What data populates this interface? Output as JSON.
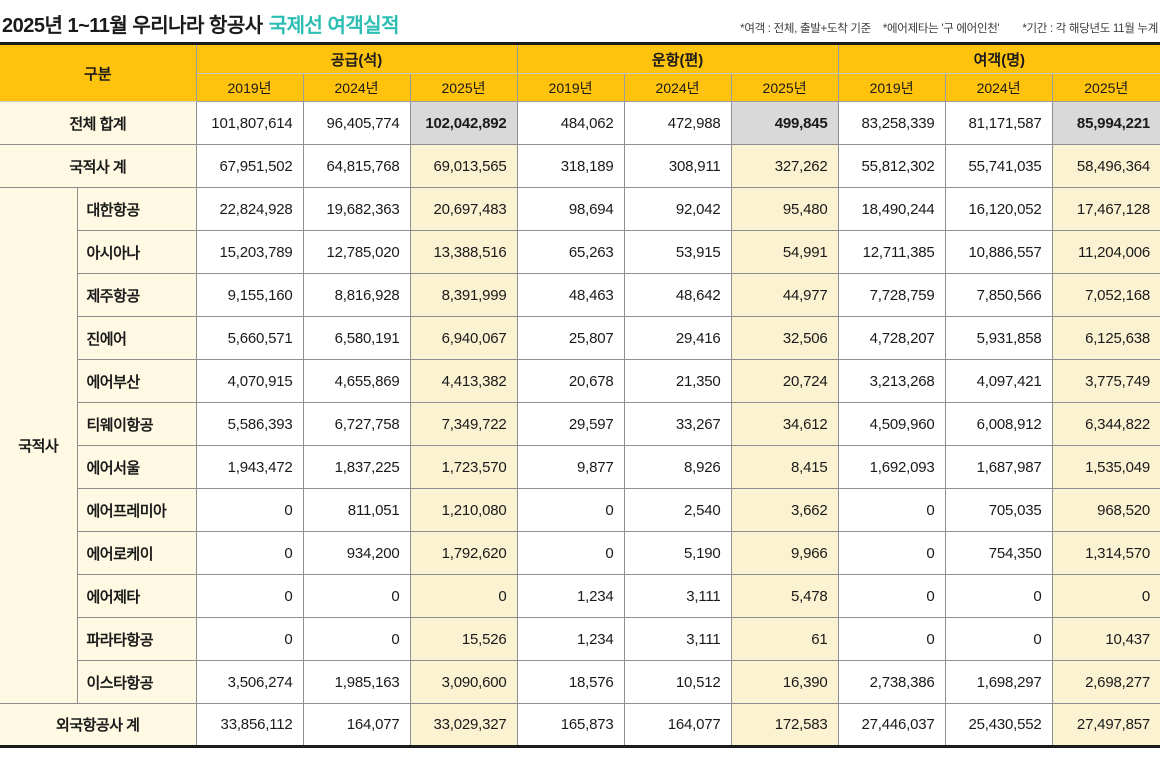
{
  "title": {
    "prefix": "2025년 1~11월 우리나라 항공사",
    "highlight": "국제선 여객실적"
  },
  "notes": [
    "*여객 : 전체, 출발+도착 기준",
    "*에어제타는 '구 에어인천'",
    "*기간 : 각 해당년도 11월 누계"
  ],
  "colors": {
    "header_bg": "#ffc20d",
    "label_bg": "#fff9e3",
    "col2025_bg": "#fbf2d1",
    "total2025_bg": "#d9d9d9",
    "title_accent": "#2cbeb3",
    "grid": "#8e8e8e"
  },
  "table": {
    "corner_label": "구분",
    "groups": [
      {
        "label": "공급(석)"
      },
      {
        "label": "운항(편)"
      },
      {
        "label": "여객(명)"
      }
    ],
    "years": [
      "2019년",
      "2024년",
      "2025년"
    ],
    "group_row_label": "국적사",
    "rows": [
      {
        "label": "전체 합계",
        "type": "total",
        "values": [
          "101,807,614",
          "96,405,774",
          "102,042,892",
          "484,062",
          "472,988",
          "499,845",
          "83,258,339",
          "81,171,587",
          "85,994,221"
        ]
      },
      {
        "label": "국적사 계",
        "type": "subtotal",
        "values": [
          "67,951,502",
          "64,815,768",
          "69,013,565",
          "318,189",
          "308,911",
          "327,262",
          "55,812,302",
          "55,741,035",
          "58,496,364"
        ]
      },
      {
        "label": "대한항공",
        "type": "airline",
        "values": [
          "22,824,928",
          "19,682,363",
          "20,697,483",
          "98,694",
          "92,042",
          "95,480",
          "18,490,244",
          "16,120,052",
          "17,467,128"
        ]
      },
      {
        "label": "아시아나",
        "type": "airline",
        "values": [
          "15,203,789",
          "12,785,020",
          "13,388,516",
          "65,263",
          "53,915",
          "54,991",
          "12,711,385",
          "10,886,557",
          "11,204,006"
        ]
      },
      {
        "label": "제주항공",
        "type": "airline",
        "values": [
          "9,155,160",
          "8,816,928",
          "8,391,999",
          "48,463",
          "48,642",
          "44,977",
          "7,728,759",
          "7,850,566",
          "7,052,168"
        ]
      },
      {
        "label": "진에어",
        "type": "airline",
        "values": [
          "5,660,571",
          "6,580,191",
          "6,940,067",
          "25,807",
          "29,416",
          "32,506",
          "4,728,207",
          "5,931,858",
          "6,125,638"
        ]
      },
      {
        "label": "에어부산",
        "type": "airline",
        "values": [
          "4,070,915",
          "4,655,869",
          "4,413,382",
          "20,678",
          "21,350",
          "20,724",
          "3,213,268",
          "4,097,421",
          "3,775,749"
        ]
      },
      {
        "label": "티웨이항공",
        "type": "airline",
        "values": [
          "5,586,393",
          "6,727,758",
          "7,349,722",
          "29,597",
          "33,267",
          "34,612",
          "4,509,960",
          "6,008,912",
          "6,344,822"
        ]
      },
      {
        "label": "에어서울",
        "type": "airline",
        "values": [
          "1,943,472",
          "1,837,225",
          "1,723,570",
          "9,877",
          "8,926",
          "8,415",
          "1,692,093",
          "1,687,987",
          "1,535,049"
        ]
      },
      {
        "label": "에어프레미아",
        "type": "airline",
        "values": [
          "0",
          "811,051",
          "1,210,080",
          "0",
          "2,540",
          "3,662",
          "0",
          "705,035",
          "968,520"
        ]
      },
      {
        "label": "에어로케이",
        "type": "airline",
        "values": [
          "0",
          "934,200",
          "1,792,620",
          "0",
          "5,190",
          "9,966",
          "0",
          "754,350",
          "1,314,570"
        ]
      },
      {
        "label": "에어제타",
        "type": "airline",
        "values": [
          "0",
          "0",
          "0",
          "1,234",
          "3,111",
          "5,478",
          "0",
          "0",
          "0"
        ]
      },
      {
        "label": "파라타항공",
        "type": "airline",
        "values": [
          "0",
          "0",
          "15,526",
          "1,234",
          "3,111",
          "61",
          "0",
          "0",
          "10,437"
        ]
      },
      {
        "label": "이스타항공",
        "type": "airline",
        "values": [
          "3,506,274",
          "1,985,163",
          "3,090,600",
          "18,576",
          "10,512",
          "16,390",
          "2,738,386",
          "1,698,297",
          "2,698,277"
        ]
      },
      {
        "label": "외국항공사 계",
        "type": "subtotal",
        "values": [
          "33,856,112",
          "164,077",
          "33,029,327",
          "165,873",
          "164,077",
          "172,583",
          "27,446,037",
          "25,430,552",
          "27,497,857"
        ]
      }
    ]
  },
  "chart_data": {
    "type": "table",
    "title": "2025년 1~11월 우리나라 항공사 국제선 여객실적",
    "column_groups": [
      "공급(석)",
      "운항(편)",
      "여객(명)"
    ],
    "years": [
      "2019년",
      "2024년",
      "2025년"
    ],
    "rows": [
      {
        "label": "전체 합계",
        "공급": [
          101807614,
          96405774,
          102042892
        ],
        "운항": [
          484062,
          472988,
          499845
        ],
        "여객": [
          83258339,
          81171587,
          85994221
        ]
      },
      {
        "label": "국적사 계",
        "공급": [
          67951502,
          64815768,
          69013565
        ],
        "운항": [
          318189,
          308911,
          327262
        ],
        "여객": [
          55812302,
          55741035,
          58496364
        ]
      },
      {
        "label": "대한항공",
        "공급": [
          22824928,
          19682363,
          20697483
        ],
        "운항": [
          98694,
          92042,
          95480
        ],
        "여객": [
          18490244,
          16120052,
          17467128
        ]
      },
      {
        "label": "아시아나",
        "공급": [
          15203789,
          12785020,
          13388516
        ],
        "운항": [
          65263,
          53915,
          54991
        ],
        "여객": [
          12711385,
          10886557,
          11204006
        ]
      },
      {
        "label": "제주항공",
        "공급": [
          9155160,
          8816928,
          8391999
        ],
        "운항": [
          48463,
          48642,
          44977
        ],
        "여객": [
          7728759,
          7850566,
          7052168
        ]
      },
      {
        "label": "진에어",
        "공급": [
          5660571,
          6580191,
          6940067
        ],
        "운항": [
          25807,
          29416,
          32506
        ],
        "여객": [
          4728207,
          5931858,
          6125638
        ]
      },
      {
        "label": "에어부산",
        "공급": [
          4070915,
          4655869,
          4413382
        ],
        "운항": [
          20678,
          21350,
          20724
        ],
        "여객": [
          3213268,
          4097421,
          3775749
        ]
      },
      {
        "label": "티웨이항공",
        "공급": [
          5586393,
          6727758,
          7349722
        ],
        "운항": [
          29597,
          33267,
          34612
        ],
        "여객": [
          4509960,
          6008912,
          6344822
        ]
      },
      {
        "label": "에어서울",
        "공급": [
          1943472,
          1837225,
          1723570
        ],
        "운항": [
          9877,
          8926,
          8415
        ],
        "여객": [
          1692093,
          1687987,
          1535049
        ]
      },
      {
        "label": "에어프레미아",
        "공급": [
          0,
          811051,
          1210080
        ],
        "운항": [
          0,
          2540,
          3662
        ],
        "여객": [
          0,
          705035,
          968520
        ]
      },
      {
        "label": "에어로케이",
        "공급": [
          0,
          934200,
          1792620
        ],
        "운항": [
          0,
          5190,
          9966
        ],
        "여객": [
          0,
          754350,
          1314570
        ]
      },
      {
        "label": "에어제타",
        "공급": [
          0,
          0,
          0
        ],
        "운항": [
          1234,
          3111,
          5478
        ],
        "여객": [
          0,
          0,
          0
        ]
      },
      {
        "label": "파라타항공",
        "공급": [
          0,
          0,
          15526
        ],
        "운항": [
          1234,
          3111,
          61
        ],
        "여객": [
          0,
          0,
          10437
        ]
      },
      {
        "label": "이스타항공",
        "공급": [
          3506274,
          1985163,
          3090600
        ],
        "운항": [
          18576,
          10512,
          16390
        ],
        "여객": [
          2738386,
          1698297,
          2698277
        ]
      },
      {
        "label": "외국항공사 계",
        "공급": [
          33856112,
          164077,
          33029327
        ],
        "운항": [
          165873,
          164077,
          172583
        ],
        "여객": [
          27446037,
          25430552,
          27497857
        ]
      }
    ]
  }
}
